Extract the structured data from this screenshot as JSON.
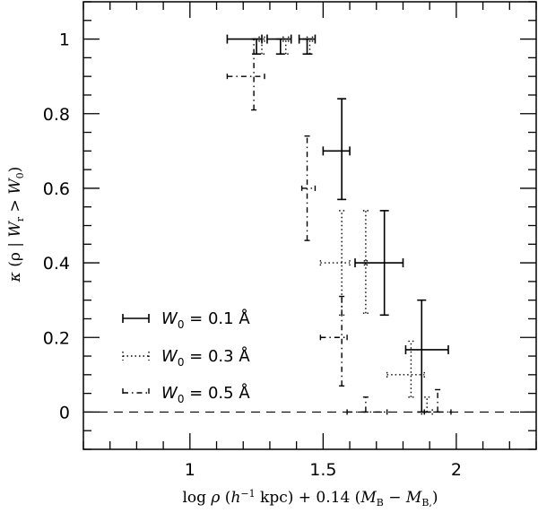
{
  "chart_data": {
    "type": "scatter",
    "title": "",
    "xlabel": "log ρ (h⁻¹ kpc) + 0.14 (M_B − M_B*)",
    "ylabel": "κ (ρ | W_r > W_0)",
    "xlim": [
      0.6,
      2.3
    ],
    "ylim": [
      -0.1,
      1.1
    ],
    "x_ticks": [
      1,
      1.5,
      2
    ],
    "x_tick_labels": [
      "1",
      "1.5",
      "2"
    ],
    "x_minor_step": 0.1,
    "y_ticks": [
      0,
      0.2,
      0.4,
      0.6,
      0.8,
      1
    ],
    "y_tick_labels": [
      "0",
      "0.2",
      "0.4",
      "0.6",
      "0.8",
      "1"
    ],
    "y_minor_step": 0.05,
    "grid": false,
    "reference_line": {
      "y": 0,
      "style": "dashed"
    },
    "legend_position": "lower left",
    "series": [
      {
        "name": "W0 = 0.1 Å",
        "style": "solid",
        "points": [
          {
            "x": 1.25,
            "y": 1.0,
            "xlo": 1.14,
            "xhi": 1.27,
            "ylo": 0.96,
            "yhi": 1.0
          },
          {
            "x": 1.34,
            "y": 1.0,
            "xlo": 1.29,
            "xhi": 1.38,
            "ylo": 0.96,
            "yhi": 1.0
          },
          {
            "x": 1.44,
            "y": 1.0,
            "xlo": 1.41,
            "xhi": 1.47,
            "ylo": 0.96,
            "yhi": 1.0
          },
          {
            "x": 1.57,
            "y": 0.7,
            "xlo": 1.5,
            "xhi": 1.6,
            "ylo": 0.57,
            "yhi": 0.84
          },
          {
            "x": 1.73,
            "y": 0.4,
            "xlo": 1.62,
            "xhi": 1.8,
            "ylo": 0.26,
            "yhi": 0.54
          },
          {
            "x": 1.87,
            "y": 0.167,
            "xlo": 1.81,
            "xhi": 1.97,
            "ylo": 0.0,
            "yhi": 0.3
          }
        ]
      },
      {
        "name": "W0 = 0.3 Å",
        "style": "dotted",
        "points": [
          {
            "x": 1.27,
            "y": 1.0,
            "xlo": 1.26,
            "xhi": 1.28,
            "ylo": 0.96,
            "yhi": 1.0
          },
          {
            "x": 1.36,
            "y": 1.0,
            "xlo": 1.35,
            "xhi": 1.37,
            "ylo": 0.96,
            "yhi": 1.0
          },
          {
            "x": 1.45,
            "y": 1.0,
            "xlo": 1.44,
            "xhi": 1.46,
            "ylo": 0.96,
            "yhi": 1.0
          },
          {
            "x": 1.57,
            "y": 0.4,
            "xlo": 1.49,
            "xhi": 1.6,
            "ylo": 0.26,
            "yhi": 0.54
          },
          {
            "x": 1.66,
            "y": 0.4,
            "xlo": 1.655,
            "xhi": 1.665,
            "ylo": 0.265,
            "yhi": 0.54
          },
          {
            "x": 1.83,
            "y": 0.1,
            "xlo": 1.74,
            "xhi": 1.88,
            "ylo": 0.04,
            "yhi": 0.19
          },
          {
            "x": 1.89,
            "y": 0.0,
            "xlo": 1.87,
            "xhi": 1.91,
            "ylo": 0.0,
            "yhi": 0.04
          }
        ]
      },
      {
        "name": "W0 = 0.5 Å",
        "style": "dashdot",
        "points": [
          {
            "x": 1.24,
            "y": 0.9,
            "xlo": 1.14,
            "xhi": 1.28,
            "ylo": 0.81,
            "yhi": 1.0
          },
          {
            "x": 1.44,
            "y": 0.6,
            "xlo": 1.42,
            "xhi": 1.47,
            "ylo": 0.46,
            "yhi": 0.74
          },
          {
            "x": 1.57,
            "y": 0.2,
            "xlo": 1.49,
            "xhi": 1.59,
            "ylo": 0.07,
            "yhi": 0.31
          },
          {
            "x": 1.66,
            "y": 0.0,
            "xlo": 1.59,
            "xhi": 1.74,
            "ylo": 0.0,
            "yhi": 0.04
          },
          {
            "x": 1.93,
            "y": 0.0,
            "xlo": 1.88,
            "xhi": 1.98,
            "ylo": 0.0,
            "yhi": 0.06
          }
        ]
      }
    ]
  },
  "legend": {
    "items": [
      {
        "prefix": "W",
        "sub": "0",
        "suffix": " = 0.1  Å",
        "style": "solid"
      },
      {
        "prefix": "W",
        "sub": "0",
        "suffix": " = 0.3  Å",
        "style": "dotted"
      },
      {
        "prefix": "W",
        "sub": "0",
        "suffix": " = 0.5  Å",
        "style": "dashdot"
      }
    ]
  },
  "axes": {
    "xlabel_parts": {
      "a": "log ",
      "rho": "ρ",
      "b": " (",
      "h": "h",
      "exp": "−1",
      "c": " kpc) + 0.14 (",
      "m1": "M",
      "s1": "B",
      "d": " − ",
      "m2": "M",
      "s2": "B,",
      "e": ")"
    },
    "ylabel_parts": {
      "kappa": "κ",
      "a": " (ρ | ",
      "w1": "W",
      "s1": "r",
      "gt": " > ",
      "w2": "W",
      "s2": "0",
      "b": ")"
    }
  }
}
